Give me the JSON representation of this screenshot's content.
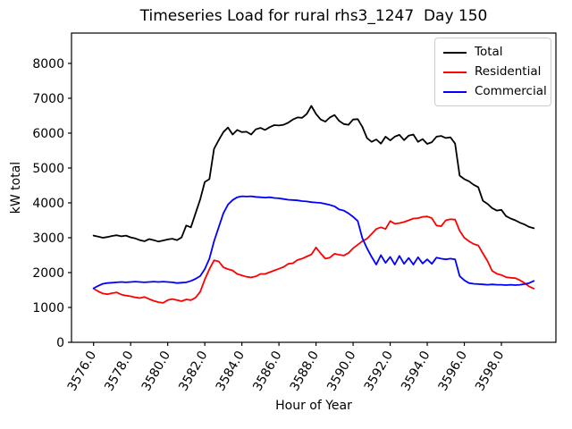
{
  "window": {
    "background_color": "#ffffff"
  },
  "chart_data": {
    "type": "line",
    "title": "Timeseries Load for rural rhs3_1247  Day 150",
    "xlabel": "Hour of Year",
    "ylabel": "kW total",
    "grid": false,
    "legend_position": "upper right",
    "xlim": [
      3574.81,
      3600.94
    ],
    "ylim": [
      0,
      8870
    ],
    "xtick_values": [
      3576,
      3578,
      3580,
      3582,
      3584,
      3586,
      3588,
      3590,
      3592,
      3594,
      3596,
      3598
    ],
    "xtick_labels": [
      "3576.0",
      "3578.0",
      "3580.0",
      "3582.0",
      "3584.0",
      "3586.0",
      "3588.0",
      "3590.0",
      "3592.0",
      "3594.0",
      "3596.0",
      "3598.0"
    ],
    "xtick_rotation_deg": 60,
    "ytick_values": [
      0,
      1000,
      2000,
      3000,
      4000,
      5000,
      6000,
      7000,
      8000
    ],
    "ytick_labels": [
      "0",
      "1000",
      "2000",
      "3000",
      "4000",
      "5000",
      "6000",
      "7000",
      "8000"
    ],
    "x_start": 3576.0,
    "x_step": 0.25,
    "series": [
      {
        "name": "Total",
        "color": "#000000",
        "values": [
          3060,
          3030,
          3000,
          3020,
          3050,
          3070,
          3040,
          3060,
          3010,
          2980,
          2930,
          2900,
          2960,
          2930,
          2890,
          2920,
          2950,
          2970,
          2930,
          3010,
          3350,
          3300,
          3700,
          4100,
          4600,
          4680,
          5550,
          5800,
          6030,
          6160,
          5960,
          6090,
          6030,
          6040,
          5960,
          6110,
          6150,
          6090,
          6170,
          6230,
          6220,
          6240,
          6300,
          6390,
          6450,
          6440,
          6550,
          6780,
          6550,
          6390,
          6330,
          6450,
          6520,
          6350,
          6260,
          6240,
          6390,
          6400,
          6180,
          5860,
          5750,
          5820,
          5700,
          5900,
          5790,
          5900,
          5950,
          5800,
          5930,
          5960,
          5750,
          5830,
          5690,
          5740,
          5900,
          5920,
          5860,
          5880,
          5700,
          4780,
          4680,
          4620,
          4520,
          4450,
          4060,
          3970,
          3850,
          3780,
          3800,
          3620,
          3550,
          3500,
          3430,
          3380,
          3310,
          3270
        ]
      },
      {
        "name": "Residential",
        "color": "#ff0000",
        "values": [
          1540,
          1460,
          1400,
          1380,
          1410,
          1430,
          1370,
          1340,
          1320,
          1290,
          1270,
          1300,
          1240,
          1190,
          1150,
          1130,
          1210,
          1240,
          1210,
          1180,
          1230,
          1210,
          1280,
          1450,
          1800,
          2100,
          2350,
          2320,
          2150,
          2100,
          2060,
          1960,
          1920,
          1880,
          1860,
          1890,
          1960,
          1960,
          2010,
          2060,
          2110,
          2160,
          2250,
          2270,
          2360,
          2400,
          2460,
          2520,
          2720,
          2550,
          2400,
          2430,
          2540,
          2510,
          2490,
          2560,
          2700,
          2800,
          2900,
          2970,
          3110,
          3250,
          3300,
          3250,
          3480,
          3400,
          3420,
          3450,
          3500,
          3550,
          3560,
          3600,
          3610,
          3560,
          3350,
          3330,
          3500,
          3530,
          3520,
          3200,
          3000,
          2900,
          2820,
          2780,
          2550,
          2330,
          2050,
          1970,
          1930,
          1870,
          1850,
          1840,
          1780,
          1700,
          1600,
          1540
        ]
      },
      {
        "name": "Commercial",
        "color": "#0000ff",
        "values": [
          1550,
          1620,
          1680,
          1700,
          1710,
          1720,
          1730,
          1720,
          1730,
          1740,
          1730,
          1720,
          1730,
          1740,
          1730,
          1740,
          1730,
          1720,
          1700,
          1710,
          1720,
          1760,
          1820,
          1900,
          2100,
          2400,
          2900,
          3300,
          3700,
          3950,
          4080,
          4160,
          4190,
          4180,
          4190,
          4170,
          4160,
          4150,
          4160,
          4140,
          4130,
          4110,
          4090,
          4080,
          4070,
          4050,
          4040,
          4020,
          4010,
          4000,
          3970,
          3940,
          3900,
          3810,
          3780,
          3700,
          3600,
          3480,
          2990,
          2700,
          2450,
          2230,
          2500,
          2280,
          2450,
          2230,
          2480,
          2250,
          2420,
          2230,
          2440,
          2260,
          2380,
          2250,
          2430,
          2400,
          2380,
          2400,
          2380,
          1900,
          1780,
          1700,
          1680,
          1670,
          1660,
          1650,
          1660,
          1650,
          1650,
          1640,
          1650,
          1640,
          1650,
          1670,
          1700,
          1760
        ]
      }
    ]
  }
}
